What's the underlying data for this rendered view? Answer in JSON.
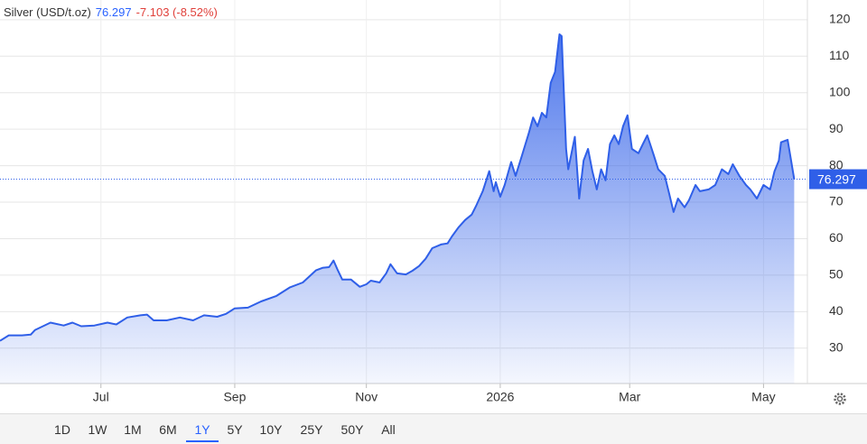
{
  "chart_data": {
    "type": "area",
    "title": "Silver (USD/t.oz)",
    "last_price": 76.297,
    "change": "-7.103 (-8.52%)",
    "xlim": [
      0,
      368
    ],
    "xticks": [
      {
        "value": 46,
        "label": "Jul"
      },
      {
        "value": 107,
        "label": "Sep"
      },
      {
        "value": 167,
        "label": "Nov"
      },
      {
        "value": 228,
        "label": "2026"
      },
      {
        "value": 287,
        "label": "Mar"
      },
      {
        "value": 348,
        "label": "May"
      }
    ],
    "ylim": [
      20.3,
      125.4
    ],
    "yticks": [
      30,
      40,
      50,
      60,
      70,
      80,
      90,
      100,
      110,
      120
    ],
    "grid": true,
    "series": [
      {
        "name": "Silver (USD/t.oz)",
        "color": "#2f5fe8",
        "x": [
          0,
          4,
          10,
          14,
          16,
          23,
          29,
          33,
          37,
          43,
          49,
          53,
          58,
          64,
          67,
          70,
          76,
          82,
          88,
          93,
          99,
          103,
          107,
          113,
          119,
          126,
          132,
          138,
          144,
          147,
          150,
          152,
          154,
          156,
          160,
          164,
          167,
          169,
          173,
          176,
          178,
          181,
          185,
          188,
          191,
          194,
          197,
          201,
          204,
          206,
          209,
          212,
          215,
          217,
          220,
          223,
          225,
          226,
          228,
          230,
          233,
          235,
          238,
          241,
          243,
          245,
          247,
          249,
          251,
          253,
          255,
          256,
          258,
          259,
          262,
          264,
          266,
          268,
          270,
          272,
          274,
          276,
          278,
          280,
          282,
          284,
          286,
          288,
          291,
          293,
          295,
          298,
          300,
          303,
          305,
          307,
          309,
          312,
          314,
          317,
          319,
          323,
          326,
          329,
          332,
          334,
          337,
          340,
          342,
          345,
          348,
          351,
          353,
          355,
          356,
          359,
          360,
          362
        ],
        "values": [
          32,
          33.5,
          33.5,
          33.7,
          35,
          37,
          36.2,
          37,
          36,
          36.2,
          37,
          36.5,
          38.4,
          39,
          39.2,
          37.6,
          37.6,
          38.4,
          37.6,
          39,
          38.6,
          39.4,
          40.9,
          41.1,
          42.8,
          44.3,
          46.6,
          48,
          51.3,
          52,
          52.2,
          54,
          51.3,
          48.8,
          48.8,
          46.8,
          47.5,
          48.5,
          48,
          50.5,
          53,
          50.5,
          50.2,
          51.2,
          52.5,
          54.5,
          57.4,
          58.4,
          58.7,
          60.6,
          63.1,
          65.1,
          66.6,
          69,
          73,
          78.5,
          73,
          75.5,
          71.5,
          74.7,
          81,
          77.2,
          83,
          88.9,
          93.2,
          90.8,
          94.5,
          93.2,
          102.7,
          105.7,
          116,
          115.5,
          84.6,
          79,
          87.9,
          71,
          81.4,
          84.6,
          78.5,
          73.5,
          79,
          76,
          85.9,
          88.3,
          85.9,
          90.8,
          93.8,
          84.6,
          83.4,
          85.9,
          88.3,
          82.9,
          79,
          77.2,
          72.3,
          67.3,
          71,
          68.6,
          70.5,
          74.7,
          73,
          73.5,
          74.7,
          79,
          77.7,
          80.4,
          77.2,
          74.7,
          73.5,
          71,
          74.7,
          73.5,
          78.5,
          81.4,
          86.4,
          87.1,
          83.4,
          76.297
        ]
      }
    ]
  },
  "toolbar": {
    "buttons": [
      "1D",
      "1W",
      "1M",
      "6M",
      "1Y",
      "5Y",
      "10Y",
      "25Y",
      "50Y",
      "All"
    ],
    "selected": 4
  }
}
